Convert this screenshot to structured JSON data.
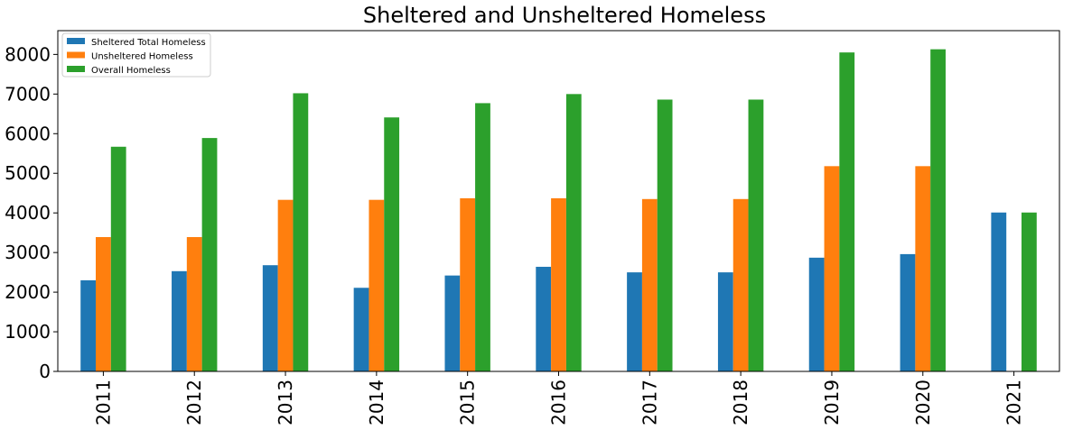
{
  "chart_data": {
    "type": "bar",
    "title": "Sheltered and Unsheltered Homeless",
    "xlabel": "",
    "ylabel": "",
    "categories": [
      "2011",
      "2012",
      "2013",
      "2014",
      "2015",
      "2016",
      "2017",
      "2018",
      "2019",
      "2020",
      "2021"
    ],
    "series": [
      {
        "name": "Sheltered Total Homeless",
        "color": "#1f77b4",
        "values": [
          2300,
          2530,
          2680,
          2110,
          2420,
          2640,
          2500,
          2500,
          2870,
          2960,
          4010
        ]
      },
      {
        "name": "Unsheltered Homeless",
        "color": "#ff7f0e",
        "values": [
          3390,
          3390,
          4330,
          4330,
          4370,
          4370,
          4350,
          4350,
          5180,
          5180,
          null
        ]
      },
      {
        "name": "Overall Homeless",
        "color": "#2ca02c",
        "values": [
          5670,
          5890,
          7020,
          6410,
          6770,
          7000,
          6860,
          6860,
          8050,
          8130,
          4010
        ]
      }
    ],
    "yticks": [
      "0",
      "1000",
      "2000",
      "3000",
      "4000",
      "5000",
      "6000",
      "7000",
      "8000"
    ],
    "ylim": [
      0,
      8600
    ],
    "grid": false,
    "legend_position": "top-left"
  }
}
